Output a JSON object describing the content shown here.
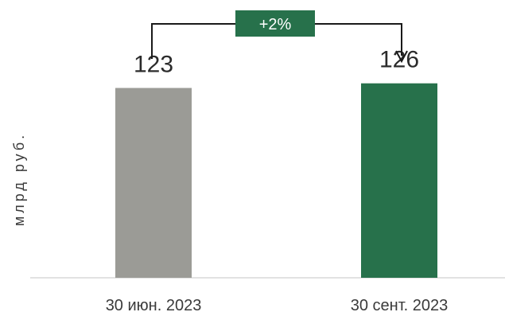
{
  "chart_data": {
    "type": "bar",
    "categories": [
      "30 июн. 2023",
      "30 сент. 2023"
    ],
    "values": [
      123,
      126
    ],
    "value_labels": [
      "123",
      "126"
    ],
    "xlabel": "",
    "ylabel": "млрд руб.",
    "ylim": [
      0,
      180
    ],
    "bar_colors": [
      "#9b9b96",
      "#27714b"
    ],
    "grid": false,
    "legend": "none",
    "annotation": {
      "text": "+2%",
      "from_category": "30 июн. 2023",
      "to_category": "30 сент. 2023",
      "color": "#27714b"
    }
  }
}
